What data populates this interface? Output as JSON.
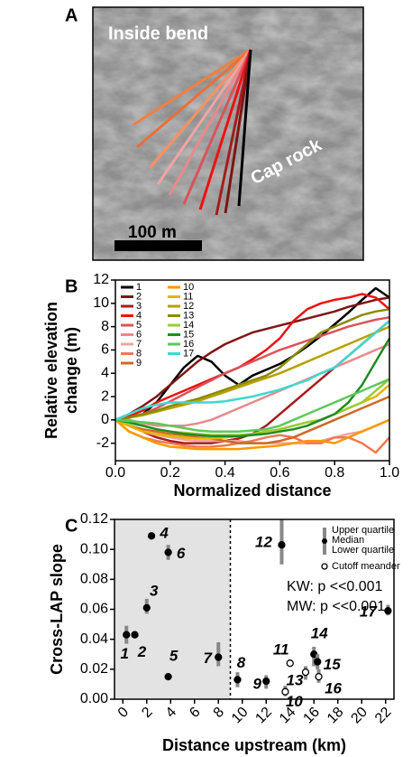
{
  "panel_a": {
    "label": "A",
    "inside_bend": "Inside bend",
    "cap_rock": "Cap rock",
    "scale_bar": "100 m"
  },
  "chart_data": [
    {
      "type": "line",
      "panel_label": "B",
      "xlabel": "Normalized distance",
      "ylabel": [
        "Relative elevation",
        "change (m)"
      ],
      "xlim": [
        0,
        1
      ],
      "ylim": [
        -3.5,
        12
      ],
      "xticks": [
        {
          "value": 0,
          "label": "0.0"
        },
        {
          "value": 0.2,
          "label": "0.2"
        },
        {
          "value": 0.4,
          "label": "0.4"
        },
        {
          "value": 0.6,
          "label": "0.6"
        },
        {
          "value": 0.8,
          "label": "0.8"
        },
        {
          "value": 1,
          "label": "1.0"
        }
      ],
      "yticks": [
        -2,
        0,
        2,
        4,
        6,
        8,
        10,
        12
      ],
      "x": [
        0,
        0.05,
        0.1,
        0.15,
        0.2,
        0.25,
        0.3,
        0.35,
        0.4,
        0.45,
        0.5,
        0.55,
        0.6,
        0.65,
        0.7,
        0.75,
        0.8,
        0.85,
        0.9,
        0.95,
        1
      ],
      "series": [
        {
          "name": "1",
          "color": "#000000",
          "values": [
            0,
            0.2,
            0.5,
            1.5,
            3,
            4.5,
            5.5,
            5,
            3.8,
            3,
            3.8,
            4.3,
            4.8,
            5.5,
            6.3,
            7.2,
            8.2,
            9.2,
            10.3,
            11.3,
            10.5
          ]
        },
        {
          "name": "2",
          "color": "#7f1414",
          "values": [
            0,
            0.5,
            1.2,
            2,
            3,
            4,
            5,
            5.8,
            6.5,
            7,
            7.5,
            7.8,
            8.1,
            8.4,
            8.7,
            9,
            9.3,
            9.7,
            10,
            10.3,
            10.5
          ]
        },
        {
          "name": "3",
          "color": "#a61c1c",
          "values": [
            0,
            -0.5,
            -1,
            -1.5,
            -1.8,
            -2,
            -2,
            -2,
            -1.8,
            -1.6,
            -1.2,
            -0.5,
            0.5,
            1.5,
            2.5,
            3.5,
            4.5,
            5.5,
            6.5,
            7.5,
            8.5
          ]
        },
        {
          "name": "4",
          "color": "#ee1111",
          "values": [
            0,
            0.3,
            0.8,
            1.5,
            2,
            2.5,
            3,
            3.5,
            4,
            4.5,
            5.2,
            6,
            7,
            8.5,
            9.5,
            10,
            10.3,
            10.5,
            10.8,
            10.5,
            9.5
          ]
        },
        {
          "name": "5",
          "color": "#d9545a",
          "values": [
            0,
            0.2,
            0.5,
            1,
            1.6,
            2.2,
            2.8,
            3.4,
            4,
            4.5,
            5,
            5.5,
            6,
            6.4,
            6.8,
            7.2,
            7.6,
            8,
            8.3,
            8.6,
            8.8
          ]
        },
        {
          "name": "6",
          "color": "#e88a8a",
          "values": [
            0,
            0,
            -0.3,
            -0.5,
            -0.5,
            -0.5,
            -0.3,
            0,
            0.5,
            1,
            1.5,
            2,
            2.5,
            3,
            3.5,
            4,
            4.5,
            5,
            5.5,
            6,
            6.5
          ]
        },
        {
          "name": "7",
          "color": "#f3a3a3",
          "values": [
            0,
            -0.5,
            -1,
            -1.3,
            -1.5,
            -1.7,
            -1.8,
            -1.8,
            -1.8,
            -1.8,
            -2,
            -2,
            -2,
            -2,
            -2,
            -1.8,
            -1.5,
            -1.2,
            -1,
            -0.5,
            0
          ]
        },
        {
          "name": "8",
          "color": "#f07850",
          "values": [
            0,
            -1,
            -1.5,
            -1.8,
            -2,
            -2.2,
            -2.3,
            -2.3,
            -2.2,
            -2,
            -1.8,
            -1.5,
            -1.3,
            -1.5,
            -2,
            -2,
            -1.5,
            -1.5,
            -2,
            -2.8,
            -1.5
          ]
        },
        {
          "name": "9",
          "color": "#cc6a24",
          "values": [
            0,
            -0.5,
            -0.8,
            -1,
            -1.2,
            -1.3,
            -1.5,
            -1.6,
            -1.8,
            -2,
            -2,
            -2,
            -1.8,
            -1.5,
            -1,
            -0.5,
            0,
            0.5,
            1,
            1.5,
            2
          ]
        },
        {
          "name": "10",
          "color": "#ff9900",
          "values": [
            0,
            -1,
            -1.5,
            -2,
            -2.3,
            -2.4,
            -2.5,
            -2.5,
            -2.5,
            -2.5,
            -2.4,
            -2.3,
            -2.2,
            -2,
            -1.8,
            -1.8,
            -2,
            -1.5,
            -1,
            -0.5,
            0
          ]
        },
        {
          "name": "11",
          "color": "#e6b400",
          "values": [
            0,
            -0.5,
            -1,
            -1.2,
            -1.4,
            -1.5,
            -1.6,
            -1.6,
            -1.5,
            -1.4,
            -1.2,
            -1,
            -0.8,
            -0.5,
            -0.2,
            0,
            0.5,
            1,
            1.5,
            2,
            3
          ]
        },
        {
          "name": "12",
          "color": "#b8a000",
          "values": [
            0,
            0.2,
            0.4,
            0.7,
            1,
            1.3,
            1.6,
            2,
            2.4,
            2.8,
            3.2,
            3.6,
            4,
            4.5,
            5,
            5.5,
            6,
            6.5,
            7,
            7.5,
            8
          ]
        },
        {
          "name": "13",
          "color": "#8a8a00",
          "values": [
            0,
            0.2,
            0.5,
            0.8,
            1.2,
            1.5,
            1.8,
            2.2,
            2.6,
            3,
            3.4,
            3.8,
            4.5,
            5.5,
            6.5,
            7.5,
            8,
            8.5,
            9,
            9.3,
            9.5
          ]
        },
        {
          "name": "14",
          "color": "#9acd32",
          "values": [
            0,
            -0.3,
            -0.5,
            -0.8,
            -1,
            -1.1,
            -1.2,
            -1.3,
            -1.3,
            -1.3,
            -1.2,
            -1,
            -0.8,
            -0.5,
            -0.2,
            0,
            0.5,
            1,
            1.5,
            2.5,
            3.5
          ]
        },
        {
          "name": "15",
          "color": "#1e8c1e",
          "values": [
            0,
            -0.2,
            -0.5,
            -0.8,
            -1,
            -1.2,
            -1.3,
            -1.4,
            -1.4,
            -1.4,
            -1.3,
            -1.2,
            -1,
            -0.8,
            -0.5,
            0,
            0.5,
            1.5,
            3,
            5,
            7
          ]
        },
        {
          "name": "16",
          "color": "#5cc85c",
          "values": [
            0,
            -0.1,
            -0.2,
            -0.3,
            -0.5,
            -0.7,
            -0.9,
            -1,
            -1,
            -1,
            -0.9,
            -0.8,
            -0.5,
            0,
            0.5,
            1,
            1.5,
            2,
            2.5,
            3,
            3.5
          ]
        },
        {
          "name": "17",
          "color": "#3fd8d0",
          "values": [
            0,
            0.5,
            1,
            1.3,
            1.5,
            1.5,
            1.5,
            1.5,
            1.6,
            1.8,
            2,
            2.3,
            2.6,
            3,
            3.4,
            4,
            4.5,
            5.5,
            6.5,
            7.5,
            8.5
          ]
        }
      ]
    },
    {
      "type": "scatter",
      "panel_label": "C",
      "xlabel": "Distance upstream (km)",
      "ylabel": "Cross-LAP slope",
      "xlim": [
        -0.7,
        22.7
      ],
      "ylim": [
        0,
        0.12
      ],
      "xticks": [
        0,
        2,
        4,
        6,
        8,
        10,
        12,
        14,
        16,
        18,
        20,
        22
      ],
      "yticks": [
        {
          "value": 0,
          "label": "0.00"
        },
        {
          "value": 0.02,
          "label": "0.02"
        },
        {
          "value": 0.04,
          "label": "0.04"
        },
        {
          "value": 0.06,
          "label": "0.06"
        },
        {
          "value": 0.08,
          "label": "0.08"
        },
        {
          "value": 0.1,
          "label": "0.10"
        },
        {
          "value": 0.12,
          "label": "0.12"
        }
      ],
      "shaded_region": [
        -0.7,
        9
      ],
      "labels": [
        "1",
        "2",
        "3",
        "4",
        "5",
        "6",
        "7",
        "8",
        "9",
        "10",
        "11",
        "12",
        "13",
        "14",
        "15",
        "16",
        "17"
      ],
      "x": [
        0.3,
        1.0,
        2.0,
        2.4,
        3.8,
        3.8,
        8.0,
        9.6,
        12.0,
        13.6,
        14.0,
        13.3,
        15.3,
        16.0,
        16.3,
        16.4,
        22.2
      ],
      "values": [
        0.043,
        0.043,
        0.061,
        0.109,
        0.015,
        0.098,
        0.028,
        0.013,
        0.012,
        0.005,
        0.024,
        0.103,
        0.018,
        0.03,
        0.025,
        0.015,
        0.059
      ],
      "lower": [
        0.037,
        null,
        0.057,
        null,
        null,
        0.093,
        0.022,
        0.008,
        0.007,
        0.002,
        null,
        0.09,
        0.013,
        0.022,
        0.02,
        0.011,
        0.056
      ],
      "upper": [
        0.049,
        null,
        0.067,
        null,
        null,
        0.103,
        0.038,
        0.018,
        0.016,
        0.009,
        null,
        0.12,
        0.022,
        0.035,
        0.03,
        0.02,
        0.063
      ],
      "cutoff": [
        false,
        false,
        false,
        false,
        false,
        false,
        false,
        false,
        false,
        true,
        true,
        false,
        true,
        false,
        false,
        true,
        false
      ],
      "marker_color": "#000000",
      "errorbar_color": "#888888",
      "legend": [
        "Upper quartile",
        "Median",
        "Lower quartile",
        "Cutoff meander"
      ],
      "annotations": [
        "KW: p <<0.001",
        "MW: p <<0.001"
      ]
    }
  ]
}
